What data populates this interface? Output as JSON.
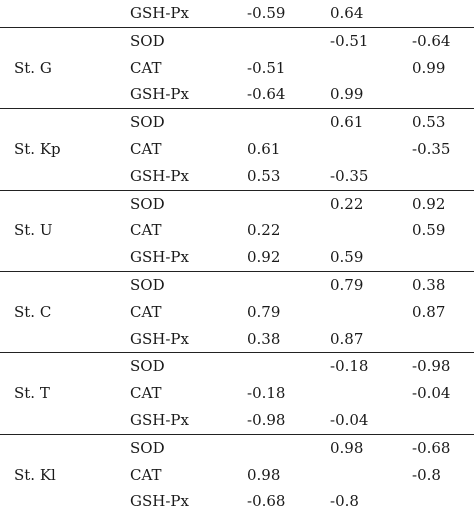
{
  "groups": [
    {
      "station": "",
      "rows": [
        {
          "enzyme": "GSH-Px",
          "v1": "-0.59",
          "v2": "0.64",
          "v3": ""
        }
      ]
    },
    {
      "station": "St. G",
      "rows": [
        {
          "enzyme": "SOD",
          "v1": "",
          "v2": "-0.51",
          "v3": "-0.64"
        },
        {
          "enzyme": "CAT",
          "v1": "-0.51",
          "v2": "",
          "v3": "0.99"
        },
        {
          "enzyme": "GSH-Px",
          "v1": "-0.64",
          "v2": "0.99",
          "v3": ""
        }
      ]
    },
    {
      "station": "St. Kp",
      "rows": [
        {
          "enzyme": "SOD",
          "v1": "",
          "v2": "0.61",
          "v3": "0.53"
        },
        {
          "enzyme": "CAT",
          "v1": "0.61",
          "v2": "",
          "v3": "-0.35"
        },
        {
          "enzyme": "GSH-Px",
          "v1": "0.53",
          "v2": "-0.35",
          "v3": ""
        }
      ]
    },
    {
      "station": "St. U",
      "rows": [
        {
          "enzyme": "SOD",
          "v1": "",
          "v2": "0.22",
          "v3": "0.92"
        },
        {
          "enzyme": "CAT",
          "v1": "0.22",
          "v2": "",
          "v3": "0.59"
        },
        {
          "enzyme": "GSH-Px",
          "v1": "0.92",
          "v2": "0.59",
          "v3": ""
        }
      ]
    },
    {
      "station": "St. C",
      "rows": [
        {
          "enzyme": "SOD",
          "v1": "",
          "v2": "0.79",
          "v3": "0.38"
        },
        {
          "enzyme": "CAT",
          "v1": "0.79",
          "v2": "",
          "v3": "0.87"
        },
        {
          "enzyme": "GSH-Px",
          "v1": "0.38",
          "v2": "0.87",
          "v3": ""
        }
      ]
    },
    {
      "station": "St. T",
      "rows": [
        {
          "enzyme": "SOD",
          "v1": "",
          "v2": "-0.18",
          "v3": "-0.98"
        },
        {
          "enzyme": "CAT",
          "v1": "-0.18",
          "v2": "",
          "v3": "-0.04"
        },
        {
          "enzyme": "GSH-Px",
          "v1": "-0.98",
          "v2": "-0.04",
          "v3": ""
        }
      ]
    },
    {
      "station": "St. Kl",
      "rows": [
        {
          "enzyme": "SOD",
          "v1": "",
          "v2": "0.98",
          "v3": "-0.68"
        },
        {
          "enzyme": "CAT",
          "v1": "0.98",
          "v2": "",
          "v3": "-0.8"
        },
        {
          "enzyme": "GSH-Px",
          "v1": "-0.68",
          "v2": "-0.8",
          "v3": ""
        }
      ]
    }
  ]
}
